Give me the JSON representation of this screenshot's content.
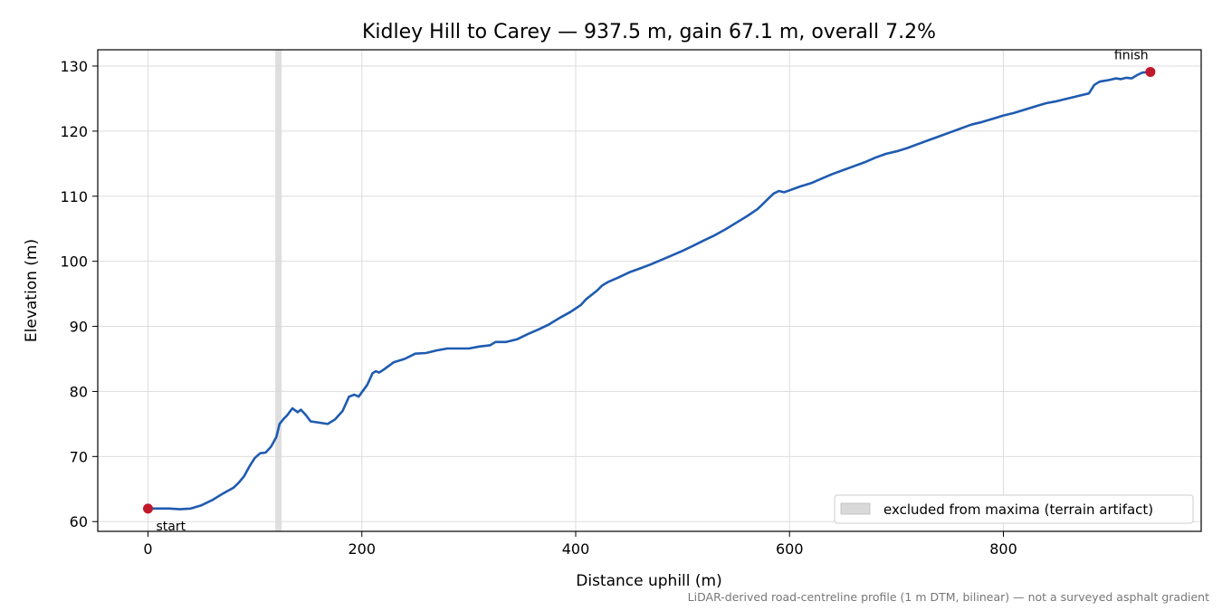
{
  "chart_data": {
    "type": "line",
    "title": "Kidley Hill to Carey — 937.5 m, gain 67.1 m, overall 7.2%",
    "xlabel": "Distance uphill (m)",
    "ylabel": "Elevation (m)",
    "xlim": [
      -47,
      985
    ],
    "ylim": [
      58.5,
      132.5
    ],
    "xticks": [
      0,
      200,
      400,
      600,
      800
    ],
    "yticks": [
      60,
      70,
      80,
      90,
      100,
      110,
      120,
      130
    ],
    "grid": true,
    "legend_position": "lower-right",
    "series": [
      {
        "color": "#1f5bb0",
        "points": [
          [
            0,
            62.0
          ],
          [
            10,
            62.0
          ],
          [
            20,
            62.0
          ],
          [
            30,
            61.9
          ],
          [
            40,
            62.0
          ],
          [
            50,
            62.5
          ],
          [
            60,
            63.3
          ],
          [
            70,
            64.3
          ],
          [
            80,
            65.2
          ],
          [
            85,
            66.0
          ],
          [
            90,
            67.0
          ],
          [
            95,
            68.5
          ],
          [
            100,
            69.8
          ],
          [
            105,
            70.5
          ],
          [
            110,
            70.6
          ],
          [
            115,
            71.5
          ],
          [
            120,
            73.0
          ],
          [
            123,
            75.0
          ],
          [
            127,
            75.8
          ],
          [
            130,
            76.3
          ],
          [
            135,
            77.4
          ],
          [
            140,
            76.8
          ],
          [
            143,
            77.2
          ],
          [
            148,
            76.3
          ],
          [
            152,
            75.4
          ],
          [
            160,
            75.2
          ],
          [
            168,
            75.0
          ],
          [
            175,
            75.7
          ],
          [
            182,
            77.0
          ],
          [
            188,
            79.2
          ],
          [
            193,
            79.5
          ],
          [
            197,
            79.2
          ],
          [
            205,
            81.0
          ],
          [
            210,
            82.8
          ],
          [
            213,
            83.1
          ],
          [
            216,
            82.9
          ],
          [
            220,
            83.3
          ],
          [
            230,
            84.5
          ],
          [
            240,
            85.0
          ],
          [
            250,
            85.8
          ],
          [
            260,
            85.9
          ],
          [
            270,
            86.3
          ],
          [
            280,
            86.6
          ],
          [
            290,
            86.6
          ],
          [
            300,
            86.6
          ],
          [
            310,
            86.9
          ],
          [
            320,
            87.1
          ],
          [
            325,
            87.6
          ],
          [
            335,
            87.6
          ],
          [
            345,
            88.0
          ],
          [
            355,
            88.8
          ],
          [
            365,
            89.5
          ],
          [
            375,
            90.3
          ],
          [
            385,
            91.3
          ],
          [
            395,
            92.2
          ],
          [
            405,
            93.3
          ],
          [
            410,
            94.2
          ],
          [
            420,
            95.5
          ],
          [
            425,
            96.3
          ],
          [
            430,
            96.8
          ],
          [
            440,
            97.5
          ],
          [
            450,
            98.3
          ],
          [
            460,
            98.9
          ],
          [
            470,
            99.5
          ],
          [
            480,
            100.2
          ],
          [
            490,
            100.9
          ],
          [
            500,
            101.6
          ],
          [
            510,
            102.4
          ],
          [
            520,
            103.2
          ],
          [
            530,
            104.0
          ],
          [
            540,
            104.9
          ],
          [
            550,
            105.9
          ],
          [
            560,
            106.9
          ],
          [
            570,
            108.0
          ],
          [
            575,
            108.8
          ],
          [
            580,
            109.6
          ],
          [
            585,
            110.4
          ],
          [
            590,
            110.8
          ],
          [
            595,
            110.6
          ],
          [
            600,
            110.9
          ],
          [
            610,
            111.5
          ],
          [
            620,
            112.0
          ],
          [
            630,
            112.7
          ],
          [
            640,
            113.4
          ],
          [
            650,
            114.0
          ],
          [
            660,
            114.6
          ],
          [
            670,
            115.2
          ],
          [
            680,
            115.9
          ],
          [
            690,
            116.5
          ],
          [
            700,
            116.9
          ],
          [
            710,
            117.4
          ],
          [
            720,
            118.0
          ],
          [
            730,
            118.6
          ],
          [
            740,
            119.2
          ],
          [
            750,
            119.8
          ],
          [
            760,
            120.4
          ],
          [
            770,
            121.0
          ],
          [
            780,
            121.4
          ],
          [
            790,
            121.9
          ],
          [
            800,
            122.4
          ],
          [
            810,
            122.8
          ],
          [
            820,
            123.3
          ],
          [
            830,
            123.8
          ],
          [
            840,
            124.3
          ],
          [
            850,
            124.6
          ],
          [
            860,
            125.0
          ],
          [
            870,
            125.4
          ],
          [
            880,
            125.8
          ],
          [
            885,
            127.1
          ],
          [
            890,
            127.6
          ],
          [
            900,
            127.9
          ],
          [
            905,
            128.1
          ],
          [
            910,
            128.0
          ],
          [
            915,
            128.2
          ],
          [
            920,
            128.1
          ],
          [
            925,
            128.6
          ],
          [
            930,
            129.0
          ],
          [
            937.5,
            129.1
          ]
        ]
      }
    ],
    "excluded_band": {
      "x_start": 119,
      "x_end": 125,
      "color": "#d9d9d9"
    },
    "markers": [
      {
        "x": 0,
        "y": 62.0,
        "label": "start",
        "color": "#c0182b"
      },
      {
        "x": 937.5,
        "y": 129.1,
        "label": "finish",
        "color": "#c0182b"
      }
    ],
    "legend": [
      {
        "label": "excluded from maxima (terrain artifact)",
        "color": "#d9d9d9"
      }
    ],
    "footnote": "LiDAR-derived road-centreline profile (1 m DTM, bilinear) — not a surveyed asphalt gradient"
  }
}
